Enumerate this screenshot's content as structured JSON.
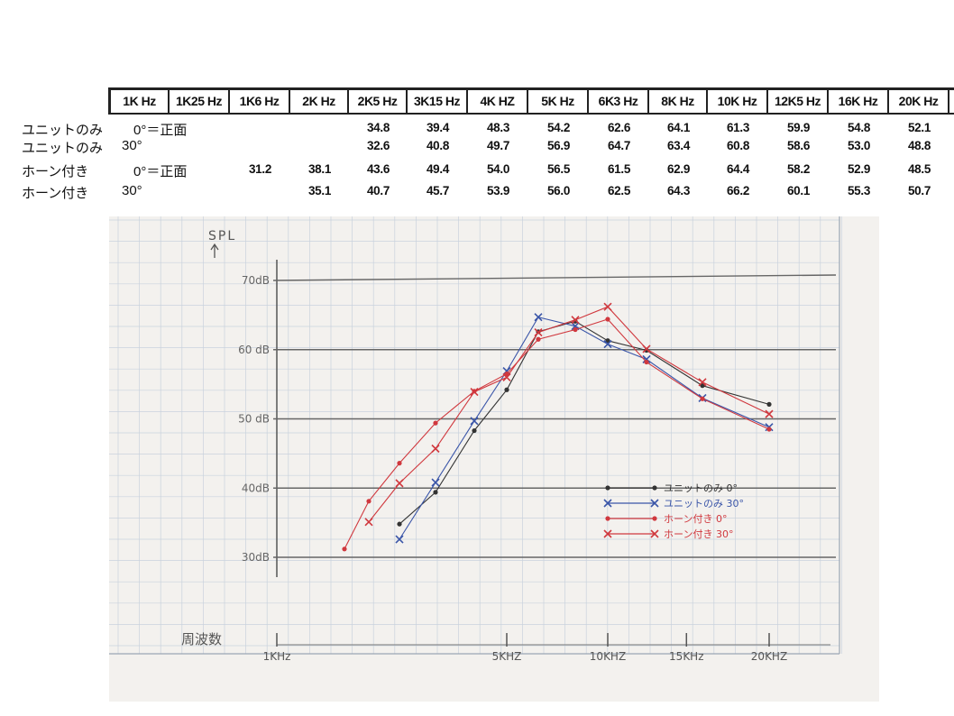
{
  "table": {
    "headers": [
      "1K Hz",
      "1K25 Hz",
      "1K6 Hz",
      "2K Hz",
      "2K5 Hz",
      "3K15 Hz",
      "4K HZ",
      "5K Hz",
      "6K3 Hz",
      "8K Hz",
      "10K Hz",
      "12K5 Hz",
      "16K Hz",
      "20K Hz"
    ],
    "rows": [
      {
        "label": "ユニットのみ",
        "angle": "0°＝正面",
        "values": [
          "",
          "",
          "",
          "",
          "34.8",
          "39.4",
          "48.3",
          "54.2",
          "62.6",
          "64.1",
          "61.3",
          "59.9",
          "54.8",
          "52.1"
        ]
      },
      {
        "label": "ユニットのみ",
        "angle": "30°",
        "values": [
          "",
          "",
          "",
          "",
          "32.6",
          "40.8",
          "49.7",
          "56.9",
          "64.7",
          "63.4",
          "60.8",
          "58.6",
          "53.0",
          "48.8"
        ]
      },
      {
        "label": "ホーン付き",
        "angle": "0°＝正面",
        "values": [
          "",
          "",
          "31.2",
          "38.1",
          "43.6",
          "49.4",
          "54.0",
          "56.5",
          "61.5",
          "62.9",
          "64.4",
          "58.2",
          "52.9",
          "48.5"
        ]
      },
      {
        "label": "ホーン付き",
        "angle": "30°",
        "values": [
          "",
          "",
          "",
          "35.1",
          "40.7",
          "45.7",
          "53.9",
          "56.0",
          "62.5",
          "64.3",
          "66.2",
          "60.1",
          "55.3",
          "50.7"
        ]
      }
    ]
  },
  "chart_data": {
    "type": "line",
    "ylabel": "SPL",
    "xlabel": "周波数",
    "y_ticks": [
      {
        "value": 70,
        "label": "70dB"
      },
      {
        "value": 60,
        "label": "60 dB"
      },
      {
        "value": 50,
        "label": "50 dB"
      },
      {
        "value": 40,
        "label": "40dB"
      },
      {
        "value": 30,
        "label": "30dB"
      }
    ],
    "x_ticks": [
      {
        "value": 1000,
        "label": "1KHz"
      },
      {
        "value": 5000,
        "label": "5KHZ"
      },
      {
        "value": 10000,
        "label": "10KHZ"
      },
      {
        "value": 15000,
        "label": "15KHz"
      },
      {
        "value": 20000,
        "label": "20KHZ"
      }
    ],
    "ylim": [
      30,
      70
    ],
    "x": [
      1600,
      2000,
      2500,
      3150,
      4000,
      5000,
      6300,
      8000,
      10000,
      12500,
      16000,
      20000
    ],
    "series": [
      {
        "name": "ユニットのみ 0°",
        "color": "#333333",
        "marker": "dot",
        "values": [
          null,
          null,
          34.8,
          39.4,
          48.3,
          54.2,
          62.6,
          64.1,
          61.3,
          59.9,
          54.8,
          52.1
        ]
      },
      {
        "name": "ユニットのみ 30°",
        "color": "#3a55a8",
        "marker": "x",
        "values": [
          null,
          null,
          32.6,
          40.8,
          49.7,
          56.9,
          64.7,
          63.4,
          60.8,
          58.6,
          53.0,
          48.8
        ]
      },
      {
        "name": "ホーン付き 0°",
        "color": "#d0383e",
        "marker": "dot",
        "values": [
          31.2,
          38.1,
          43.6,
          49.4,
          54.0,
          56.5,
          61.5,
          62.9,
          64.4,
          58.2,
          52.9,
          48.5
        ]
      },
      {
        "name": "ホーン付き 30°",
        "color": "#d0383e",
        "marker": "x",
        "values": [
          null,
          35.1,
          40.7,
          45.7,
          53.9,
          56.0,
          62.5,
          64.3,
          66.2,
          60.1,
          55.3,
          50.7
        ]
      }
    ],
    "legend": [
      {
        "text": "ユニットのみ 0°",
        "color": "#333333",
        "marker": "dot"
      },
      {
        "text": "ユニットのみ 30°",
        "color": "#3a55a8",
        "marker": "x"
      },
      {
        "text": "ホーン付き 0°",
        "color": "#d0383e",
        "marker": "dot"
      },
      {
        "text": "ホーン付き 30°",
        "color": "#d0383e",
        "marker": "x"
      }
    ],
    "legend_position": "lower-right",
    "grid": true
  }
}
